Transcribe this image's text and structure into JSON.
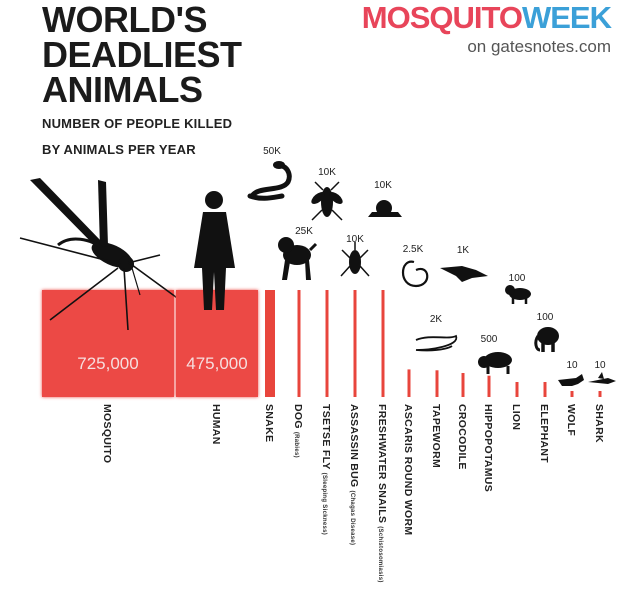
{
  "header": {
    "title_lines": [
      "WORLD'S",
      "DEADLIEST",
      "ANIMALS"
    ],
    "subtitle_lines": [
      "NUMBER OF PEOPLE KILLED",
      "BY ANIMALS PER YEAR"
    ]
  },
  "brand": {
    "part1": "MOSQUITO",
    "part2": "WEEK",
    "url": "on gatesnotes.com",
    "color1": "#e8455a",
    "color2": "#3ba0d8"
  },
  "colors": {
    "bar": "#e8453c",
    "big_bar": "#ec4a44",
    "value_big": "#f6dede"
  },
  "chart_data": {
    "type": "bar",
    "title": "WORLD'S DEADLIEST ANIMALS",
    "subtitle": "NUMBER OF PEOPLE KILLED BY ANIMALS PER YEAR",
    "unit": "people killed per year",
    "bars": [
      {
        "name": "MOSQUITO",
        "note": "",
        "value": 725000,
        "value_label": "725,000",
        "icon": "mosquito-icon"
      },
      {
        "name": "HUMAN",
        "note": "",
        "value": 475000,
        "value_label": "475,000",
        "icon": "human-icon"
      },
      {
        "name": "SNAKE",
        "note": "",
        "value": 50000,
        "value_label": "50K",
        "icon": "snake-icon"
      },
      {
        "name": "DOG",
        "note": "(Rabies)",
        "value": 25000,
        "value_label": "25K",
        "icon": "dog-icon"
      },
      {
        "name": "TSETSE FLY",
        "note": "(Sleeping Sickness)",
        "value": 10000,
        "value_label": "10K",
        "icon": "tsetse-fly-icon"
      },
      {
        "name": "ASSASSIN BUG",
        "note": "(Chagas Disease)",
        "value": 10000,
        "value_label": "10K",
        "icon": "assassin-bug-icon"
      },
      {
        "name": "FRESHWATER SNAILS",
        "note": "(Schistosomiasis)",
        "value": 10000,
        "value_label": "10K",
        "icon": "snail-icon"
      },
      {
        "name": "ASCARIS ROUND WORM",
        "note": "",
        "value": 2500,
        "value_label": "2.5K",
        "icon": "roundworm-icon"
      },
      {
        "name": "TAPEWORM",
        "note": "",
        "value": 2000,
        "value_label": "2K",
        "icon": "tapeworm-icon"
      },
      {
        "name": "CROCODILE",
        "note": "",
        "value": 1000,
        "value_label": "1K",
        "icon": "crocodile-icon"
      },
      {
        "name": "HIPPOPOTAMUS",
        "note": "",
        "value": 500,
        "value_label": "500",
        "icon": "hippopotamus-icon"
      },
      {
        "name": "LION",
        "note": "",
        "value": 100,
        "value_label": "100",
        "icon": "lion-icon"
      },
      {
        "name": "ELEPHANT",
        "note": "",
        "value": 100,
        "value_label": "100",
        "icon": "elephant-icon"
      },
      {
        "name": "WOLF",
        "note": "",
        "value": 10,
        "value_label": "10",
        "icon": "wolf-icon"
      },
      {
        "name": "SHARK",
        "note": "",
        "value": 10,
        "value_label": "10",
        "icon": "shark-icon"
      }
    ]
  }
}
